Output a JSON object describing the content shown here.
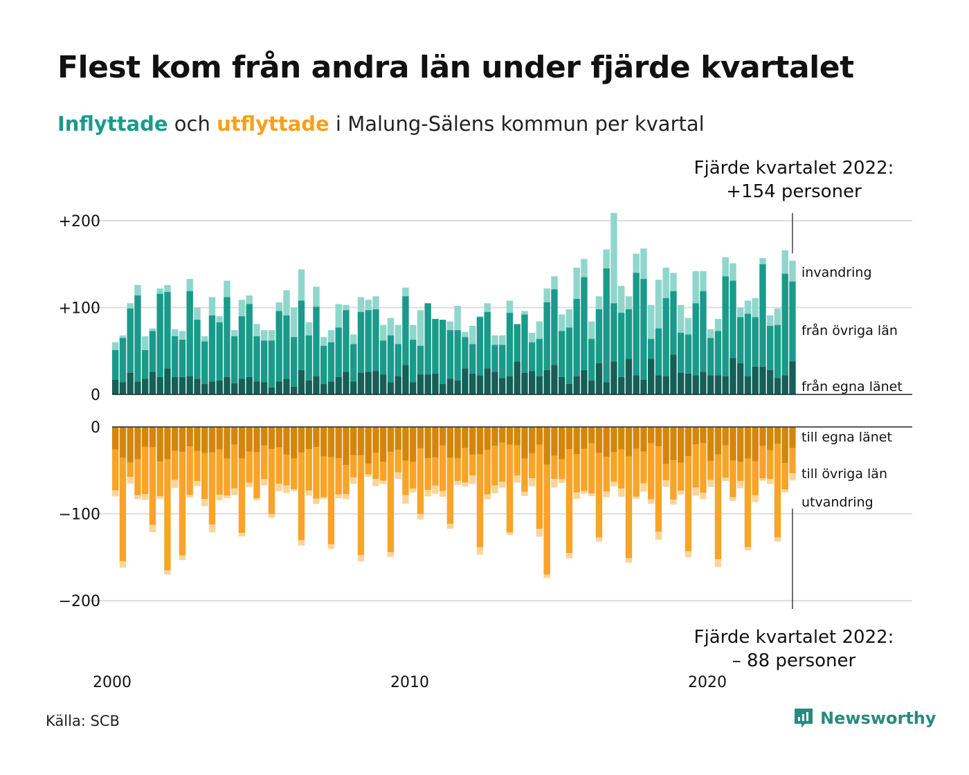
{
  "title": "Flest kom från andra län under fjärde kvartalet",
  "subtitle": {
    "part_in": "Inflyttade",
    "part_mid": " och ",
    "part_out": "utflyttade",
    "part_rest": " i Malung-Sälens  kommun per kvartal"
  },
  "annotation_top": {
    "line1": "Fjärde kvartalet 2022:",
    "line2": "+154 personer"
  },
  "annotation_bottom": {
    "line1": "Fjärde kvartalet 2022:",
    "line2": "– 88 personer"
  },
  "source": "Källa: SCB",
  "brand": "Newsworthy",
  "colors": {
    "in_own": "#145f58",
    "in_other": "#1a9a8a",
    "in_immigration": "#8fd6cc",
    "out_own": "#d4860c",
    "out_other": "#f7a428",
    "out_emigration": "#fcd49a",
    "grid": "#dddddd",
    "brand": "#2a8a7f"
  },
  "chart_data": {
    "type": "bar",
    "x_label_years": [
      "2000",
      "2010",
      "2020"
    ],
    "start": "2000 Q1",
    "end": "2022 Q4",
    "y_ticks_top": [
      "+200",
      "+100",
      "0"
    ],
    "y_ticks_bottom": [
      "0",
      "−100",
      "−200"
    ],
    "labels_in": [
      "invandring",
      "från övriga län",
      "från egna länet"
    ],
    "labels_out": [
      "till egna länet",
      "till övriga län",
      "utvandring"
    ],
    "in_total": [
      60,
      68,
      105,
      126,
      67,
      76,
      122,
      126,
      75,
      73,
      133,
      100,
      67,
      112,
      90,
      131,
      74,
      109,
      114,
      81,
      74,
      74,
      106,
      120,
      100,
      144,
      83,
      124,
      66,
      74,
      104,
      103,
      69,
      112,
      109,
      113,
      80,
      88,
      80,
      123,
      80,
      97,
      95,
      85,
      85,
      84,
      102,
      72,
      79,
      90,
      105,
      68,
      68,
      108,
      81,
      96,
      71,
      84,
      122,
      136,
      92,
      98,
      146,
      156,
      84,
      113,
      167,
      209,
      125,
      113,
      162,
      168,
      103,
      132,
      146,
      140,
      103,
      88,
      142,
      142,
      75,
      87,
      158,
      151,
      100,
      108,
      111,
      157,
      91,
      99,
      166,
      154
    ],
    "in_others_cum": [
      51,
      65,
      99,
      114,
      51,
      73,
      116,
      118,
      67,
      63,
      119,
      86,
      61,
      91,
      83,
      112,
      67,
      90,
      104,
      67,
      62,
      62,
      96,
      91,
      66,
      108,
      68,
      101,
      56,
      60,
      77,
      97,
      58,
      95,
      97,
      98,
      62,
      68,
      58,
      113,
      63,
      56,
      105,
      87,
      86,
      74,
      74,
      66,
      58,
      89,
      95,
      57,
      57,
      94,
      81,
      92,
      60,
      64,
      106,
      121,
      73,
      77,
      110,
      135,
      64,
      98,
      145,
      105,
      94,
      98,
      140,
      133,
      64,
      76,
      111,
      119,
      71,
      69,
      105,
      119,
      65,
      73,
      136,
      131,
      89,
      93,
      89,
      150,
      79,
      80,
      139,
      130
    ],
    "in_own": [
      17,
      14,
      25,
      15,
      18,
      26,
      20,
      30,
      20,
      20,
      21,
      18,
      12,
      15,
      16,
      20,
      13,
      18,
      20,
      15,
      14,
      8,
      15,
      18,
      9,
      28,
      16,
      21,
      12,
      15,
      20,
      26,
      15,
      25,
      26,
      27,
      23,
      14,
      21,
      34,
      14,
      23,
      23,
      24,
      12,
      18,
      16,
      30,
      24,
      22,
      30,
      26,
      19,
      21,
      38,
      25,
      27,
      21,
      28,
      34,
      20,
      12,
      21,
      28,
      16,
      36,
      14,
      38,
      20,
      41,
      22,
      17,
      41,
      22,
      21,
      46,
      25,
      24,
      22,
      26,
      22,
      22,
      21,
      42,
      36,
      21,
      32,
      32,
      28,
      19,
      22,
      38
    ]
  }
}
